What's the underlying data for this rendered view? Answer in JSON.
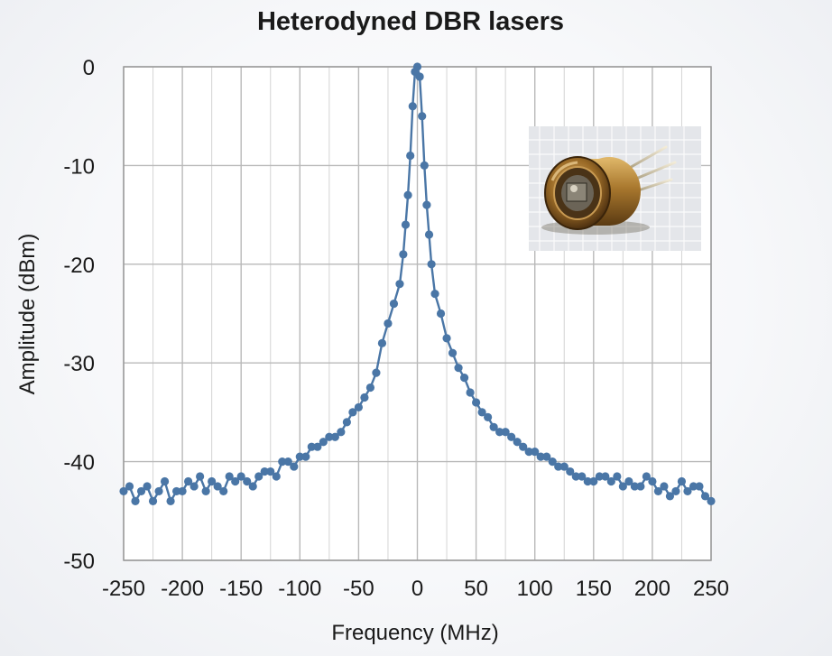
{
  "chart_data": {
    "type": "line",
    "title": "Heterodyned DBR lasers",
    "xlabel": "Frequency (MHz)",
    "ylabel": "Amplitude (dBm)",
    "xlim": [
      -250,
      250
    ],
    "ylim": [
      -50,
      0
    ],
    "xticks": [
      -250,
      -200,
      -150,
      -100,
      -50,
      0,
      50,
      100,
      150,
      200,
      250
    ],
    "yticks": [
      0,
      -10,
      -20,
      -30,
      -40,
      -50
    ],
    "grid": true,
    "series_color": "#4a76a6",
    "series": [
      {
        "x": [
          -250,
          -245,
          -240,
          -235,
          -230,
          -225,
          -220,
          -215,
          -210,
          -205,
          -200,
          -195,
          -190,
          -185,
          -180,
          -175,
          -170,
          -165,
          -160,
          -155,
          -150,
          -145,
          -140,
          -135,
          -130,
          -125,
          -120,
          -115,
          -110,
          -105,
          -100,
          -95,
          -90,
          -85,
          -80,
          -75,
          -70,
          -65,
          -60,
          -55,
          -50,
          -45,
          -40,
          -35,
          -30,
          -25,
          -20,
          -15,
          -12,
          -10,
          -8,
          -6,
          -4,
          -2,
          0,
          2,
          4,
          6,
          8,
          10,
          12,
          15,
          20,
          25,
          30,
          35,
          40,
          45,
          50,
          55,
          60,
          65,
          70,
          75,
          80,
          85,
          90,
          95,
          100,
          105,
          110,
          115,
          120,
          125,
          130,
          135,
          140,
          145,
          150,
          155,
          160,
          165,
          170,
          175,
          180,
          185,
          190,
          195,
          200,
          205,
          210,
          215,
          220,
          225,
          230,
          235,
          240,
          245,
          250
        ],
        "y": [
          -43,
          -42.5,
          -44,
          -43,
          -42.5,
          -44,
          -43,
          -42,
          -44,
          -43,
          -43,
          -42,
          -42.5,
          -41.5,
          -43,
          -42,
          -42.5,
          -43,
          -41.5,
          -42,
          -41.5,
          -42,
          -42.5,
          -41.5,
          -41,
          -41,
          -41.5,
          -40,
          -40,
          -40.5,
          -39.5,
          -39.5,
          -38.5,
          -38.5,
          -38,
          -37.5,
          -37.5,
          -37,
          -36,
          -35,
          -34.5,
          -33.5,
          -32.5,
          -31,
          -28,
          -26,
          -24,
          -22,
          -19,
          -16,
          -13,
          -9,
          -4,
          -0.5,
          0,
          -1,
          -5,
          -10,
          -14,
          -17,
          -20,
          -23,
          -25,
          -27.5,
          -29,
          -30.5,
          -31.5,
          -33,
          -34,
          -35,
          -35.5,
          -36.5,
          -37,
          -37,
          -37.5,
          -38,
          -38.5,
          -39,
          -39,
          -39.5,
          -39.5,
          -40,
          -40.5,
          -40.5,
          -41,
          -41.5,
          -41.5,
          -42,
          -42,
          -41.5,
          -41.5,
          -42,
          -41.5,
          -42.5,
          -42,
          -42.5,
          -42.5,
          -41.5,
          -42,
          -43,
          -42.5,
          -43.5,
          -43,
          -42,
          -43,
          -42.5,
          -42.5,
          -43.5,
          -44
        ]
      }
    ]
  },
  "inset": {
    "icon": "to-can-laser-diode-photo"
  }
}
